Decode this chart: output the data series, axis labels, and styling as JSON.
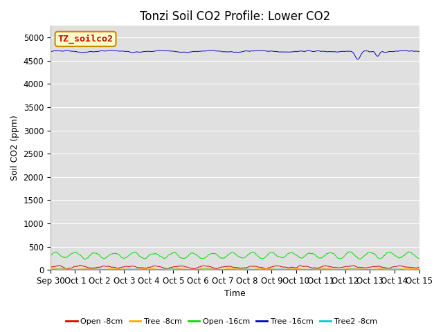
{
  "title": "Tonzi Soil CO2 Profile: Lower CO2",
  "xlabel": "Time",
  "ylabel": "Soil CO2 (ppm)",
  "ylim": [
    0,
    5250
  ],
  "yticks": [
    0,
    500,
    1000,
    1500,
    2000,
    2500,
    3000,
    3500,
    4000,
    4500,
    5000
  ],
  "xtick_labels": [
    "Sep 30",
    "Oct 1",
    "Oct 2",
    "Oct 3",
    "Oct 4",
    "Oct 5",
    "Oct 6",
    "Oct 7",
    "Oct 8",
    "Oct 9",
    "Oct 10",
    "Oct 11",
    "Oct 12",
    "Oct 13",
    "Oct 14",
    "Oct 15"
  ],
  "num_points": 720,
  "legend_label": "TZ_soilco2",
  "legend_label_color": "#cc0000",
  "legend_label_bg": "#ffffcc",
  "legend_label_border": "#cc8800",
  "series": [
    {
      "name": "Open -8cm",
      "color": "#dd0000",
      "base": 60,
      "amp": 20,
      "noise": 20,
      "period": 1.0
    },
    {
      "name": "Tree -8cm",
      "color": "#ffaa00",
      "base": 18,
      "amp": 8,
      "noise": 8,
      "period": 1.2
    },
    {
      "name": "Open -16cm",
      "color": "#00dd00",
      "base": 310,
      "amp": 60,
      "noise": 30,
      "period": 0.8
    },
    {
      "name": "Tree -16cm",
      "color": "#0000cc",
      "base": 4700,
      "amp": 15,
      "noise": 15,
      "period": 2.0
    },
    {
      "name": "Tree2 -8cm",
      "color": "#00cccc",
      "base": 10,
      "amp": 5,
      "noise": 5,
      "period": 1.5
    }
  ],
  "bg_color": "#e0e0e0",
  "fig_bg": "#ffffff",
  "grid_color": "#ffffff",
  "title_fontsize": 12,
  "axis_fontsize": 9,
  "tick_fontsize": 8.5
}
